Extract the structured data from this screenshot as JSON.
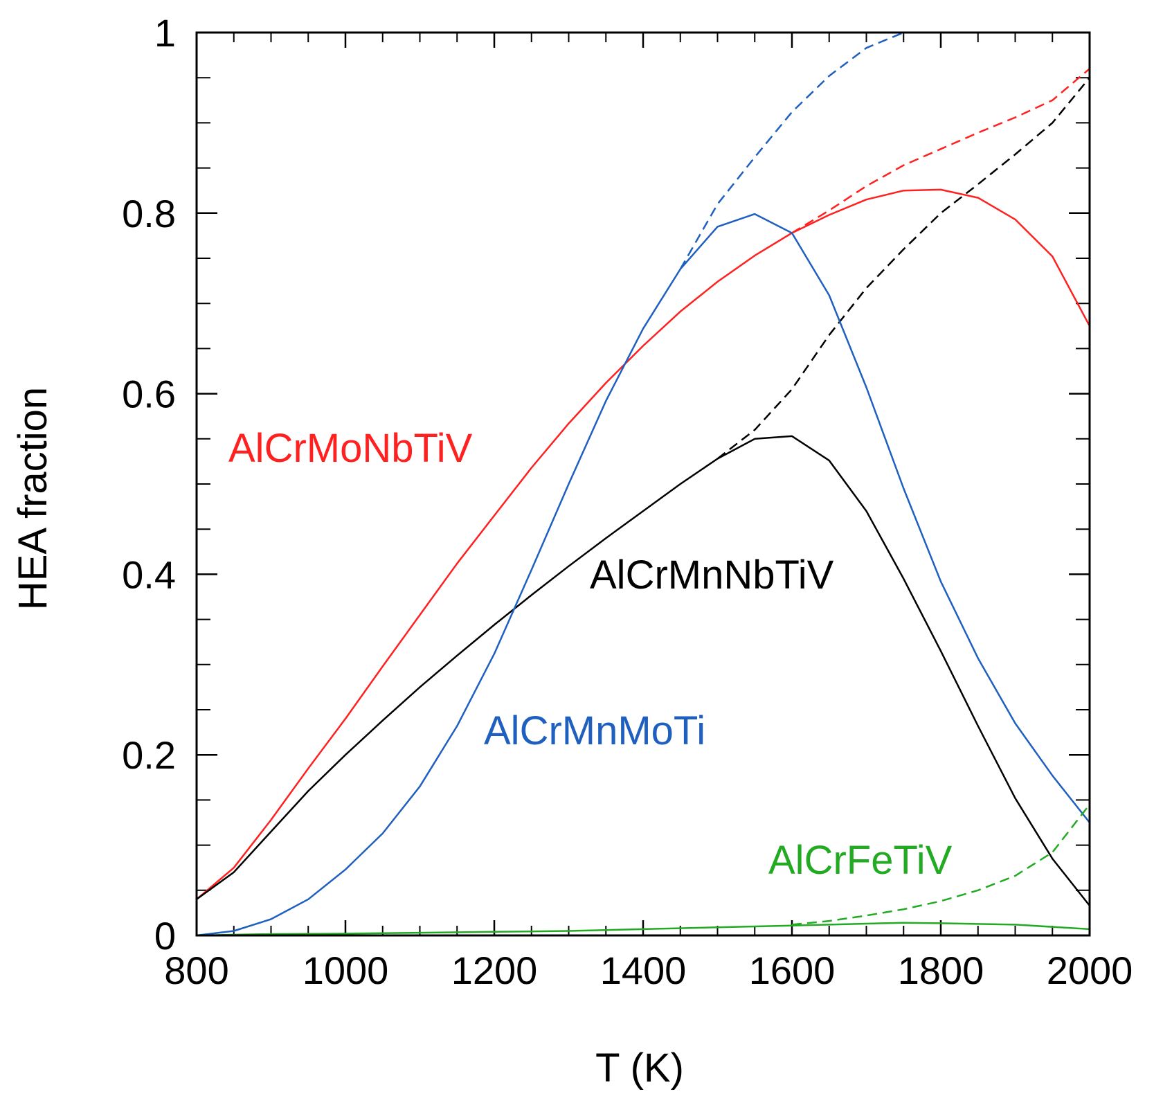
{
  "chart_data": {
    "type": "line",
    "title": "",
    "xlabel": "T (K)",
    "ylabel": "HEA fraction",
    "xlim": [
      800,
      2000
    ],
    "ylim": [
      0,
      1
    ],
    "xticks": [
      800,
      1000,
      1200,
      1400,
      1600,
      1800,
      2000
    ],
    "xtick_labels": [
      "800",
      "1000",
      "1200",
      "1400",
      "1600",
      "1800",
      "2000"
    ],
    "yticks": [
      0,
      0.2,
      0.4,
      0.6,
      0.8,
      1
    ],
    "ytick_labels": [
      "0",
      "0.2",
      "0.4",
      "0.6",
      "0.8",
      "1"
    ],
    "minor_x_step": 50,
    "minor_y_step": 0.05,
    "grid": false,
    "series": [
      {
        "name": "AlCrMoNbTiV",
        "color": "#ff2020",
        "label": "AlCrMoNbTiV",
        "solid": [
          [
            800,
            0.04
          ],
          [
            850,
            0.075
          ],
          [
            900,
            0.128
          ],
          [
            950,
            0.185
          ],
          [
            1000,
            0.24
          ],
          [
            1050,
            0.298
          ],
          [
            1100,
            0.355
          ],
          [
            1150,
            0.412
          ],
          [
            1200,
            0.465
          ],
          [
            1250,
            0.518
          ],
          [
            1300,
            0.567
          ],
          [
            1350,
            0.612
          ],
          [
            1400,
            0.653
          ],
          [
            1450,
            0.691
          ],
          [
            1500,
            0.724
          ],
          [
            1550,
            0.753
          ],
          [
            1600,
            0.778
          ],
          [
            1650,
            0.798
          ],
          [
            1700,
            0.815
          ],
          [
            1750,
            0.825
          ],
          [
            1800,
            0.826
          ],
          [
            1850,
            0.817
          ],
          [
            1900,
            0.793
          ],
          [
            1950,
            0.752
          ],
          [
            2000,
            0.675
          ]
        ],
        "dashed": [
          [
            1600,
            0.778
          ],
          [
            1650,
            0.803
          ],
          [
            1700,
            0.83
          ],
          [
            1750,
            0.853
          ],
          [
            1800,
            0.871
          ],
          [
            1850,
            0.889
          ],
          [
            1900,
            0.906
          ],
          [
            1950,
            0.925
          ],
          [
            2000,
            0.96
          ]
        ]
      },
      {
        "name": "AlCrMnNbTiV",
        "color": "#000000",
        "label": "AlCrMnNbTiV",
        "solid": [
          [
            800,
            0.04
          ],
          [
            850,
            0.07
          ],
          [
            900,
            0.115
          ],
          [
            950,
            0.16
          ],
          [
            1000,
            0.2
          ],
          [
            1050,
            0.238
          ],
          [
            1100,
            0.275
          ],
          [
            1150,
            0.31
          ],
          [
            1200,
            0.344
          ],
          [
            1250,
            0.377
          ],
          [
            1300,
            0.409
          ],
          [
            1350,
            0.44
          ],
          [
            1400,
            0.47
          ],
          [
            1450,
            0.5
          ],
          [
            1500,
            0.528
          ],
          [
            1550,
            0.55
          ],
          [
            1600,
            0.553
          ],
          [
            1650,
            0.526
          ],
          [
            1700,
            0.47
          ],
          [
            1750,
            0.395
          ],
          [
            1800,
            0.315
          ],
          [
            1850,
            0.232
          ],
          [
            1900,
            0.152
          ],
          [
            1950,
            0.085
          ],
          [
            2000,
            0.033
          ]
        ],
        "dashed": [
          [
            1500,
            0.528
          ],
          [
            1550,
            0.56
          ],
          [
            1600,
            0.605
          ],
          [
            1650,
            0.665
          ],
          [
            1700,
            0.717
          ],
          [
            1750,
            0.76
          ],
          [
            1800,
            0.8
          ],
          [
            1850,
            0.832
          ],
          [
            1900,
            0.865
          ],
          [
            1950,
            0.9
          ],
          [
            2000,
            0.95
          ]
        ]
      },
      {
        "name": "AlCrMnMoTi",
        "color": "#1f5fbf",
        "label": "AlCrMnMoTi",
        "solid": [
          [
            800,
            0.0
          ],
          [
            850,
            0.005
          ],
          [
            900,
            0.018
          ],
          [
            950,
            0.04
          ],
          [
            1000,
            0.073
          ],
          [
            1050,
            0.113
          ],
          [
            1100,
            0.165
          ],
          [
            1150,
            0.232
          ],
          [
            1200,
            0.312
          ],
          [
            1250,
            0.405
          ],
          [
            1300,
            0.5
          ],
          [
            1350,
            0.592
          ],
          [
            1400,
            0.672
          ],
          [
            1450,
            0.738
          ],
          [
            1500,
            0.785
          ],
          [
            1550,
            0.799
          ],
          [
            1600,
            0.778
          ],
          [
            1650,
            0.709
          ],
          [
            1700,
            0.607
          ],
          [
            1750,
            0.495
          ],
          [
            1800,
            0.392
          ],
          [
            1850,
            0.307
          ],
          [
            1900,
            0.235
          ],
          [
            1950,
            0.177
          ],
          [
            2000,
            0.125
          ]
        ],
        "dashed": [
          [
            1450,
            0.738
          ],
          [
            1500,
            0.81
          ],
          [
            1550,
            0.862
          ],
          [
            1600,
            0.912
          ],
          [
            1650,
            0.952
          ],
          [
            1700,
            0.983
          ],
          [
            1750,
            1.0
          ]
        ]
      },
      {
        "name": "AlCrFeTiV",
        "color": "#22aa22",
        "label": "AlCrFeTiV",
        "solid": [
          [
            800,
            0.0
          ],
          [
            900,
            0.0015
          ],
          [
            1000,
            0.002
          ],
          [
            1100,
            0.003
          ],
          [
            1200,
            0.004
          ],
          [
            1300,
            0.005
          ],
          [
            1400,
            0.007
          ],
          [
            1500,
            0.009
          ],
          [
            1600,
            0.011
          ],
          [
            1700,
            0.013
          ],
          [
            1750,
            0.014
          ],
          [
            1800,
            0.0135
          ],
          [
            1900,
            0.012
          ],
          [
            2000,
            0.007
          ]
        ],
        "dashed": [
          [
            1600,
            0.012
          ],
          [
            1650,
            0.016
          ],
          [
            1700,
            0.022
          ],
          [
            1750,
            0.029
          ],
          [
            1800,
            0.038
          ],
          [
            1850,
            0.05
          ],
          [
            1900,
            0.066
          ],
          [
            1950,
            0.092
          ],
          [
            2000,
            0.145
          ]
        ]
      }
    ]
  }
}
